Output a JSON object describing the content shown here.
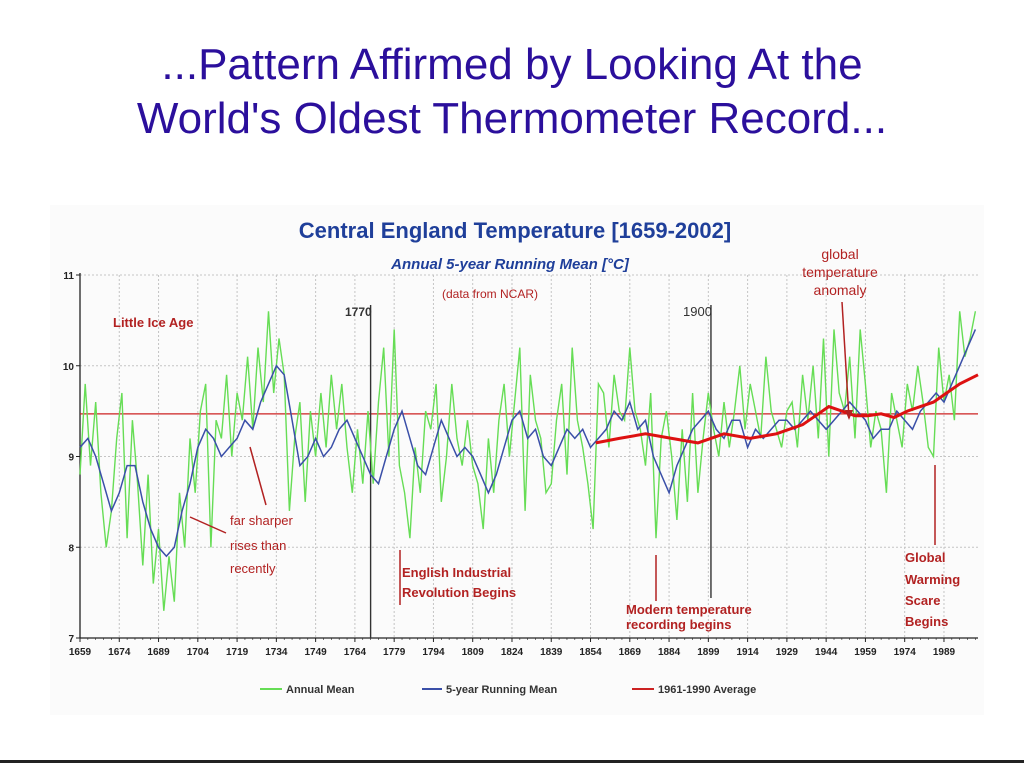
{
  "slide": {
    "title_line1": "...Pattern Affirmed by Looking At the",
    "title_line2": "World's Oldest Thermometer Record..."
  },
  "chart_data": {
    "type": "line",
    "title": "Central England Temperature [1659-2002]",
    "subtitle": "Annual 5-year Running Mean [°C]",
    "source_note": "(data from NCAR)",
    "xlim": [
      1659,
      2002
    ],
    "ylim": [
      7,
      11
    ],
    "grid": true,
    "legend_position": "bottom",
    "y_ticks": [
      "7",
      "8",
      "9",
      "10",
      "11"
    ],
    "x_tick_labels": [
      "1659",
      "1674",
      "1689",
      "1704",
      "1719",
      "1734",
      "1749",
      "1764",
      "1779",
      "1794",
      "1809",
      "1824",
      "1839",
      "1854",
      "1869",
      "1884",
      "1899",
      "1914",
      "1929",
      "1944",
      "1959",
      "1974",
      "1989"
    ],
    "colors": {
      "annual": "#66dd55",
      "running_mean": "#3a4fa8",
      "average": "#cc2222",
      "annotation": "#b22222",
      "marker_line": "#333333"
    },
    "average_1961_1990": 9.47,
    "series": [
      {
        "name": "Annual Mean",
        "x": [
          1659,
          1661,
          1663,
          1665,
          1667,
          1669,
          1671,
          1673,
          1675,
          1677,
          1679,
          1681,
          1683,
          1685,
          1687,
          1689,
          1691,
          1693,
          1695,
          1697,
          1699,
          1701,
          1703,
          1705,
          1707,
          1709,
          1711,
          1713,
          1715,
          1717,
          1719,
          1721,
          1723,
          1725,
          1727,
          1729,
          1731,
          1733,
          1735,
          1737,
          1739,
          1741,
          1743,
          1745,
          1747,
          1749,
          1751,
          1753,
          1755,
          1757,
          1759,
          1761,
          1763,
          1765,
          1767,
          1769,
          1771,
          1773,
          1775,
          1777,
          1779,
          1781,
          1783,
          1785,
          1787,
          1789,
          1791,
          1793,
          1795,
          1797,
          1799,
          1801,
          1803,
          1805,
          1807,
          1809,
          1811,
          1813,
          1815,
          1817,
          1819,
          1821,
          1823,
          1825,
          1827,
          1829,
          1831,
          1833,
          1835,
          1837,
          1839,
          1841,
          1843,
          1845,
          1847,
          1849,
          1851,
          1853,
          1855,
          1857,
          1859,
          1861,
          1863,
          1865,
          1867,
          1869,
          1871,
          1873,
          1875,
          1877,
          1879,
          1881,
          1883,
          1885,
          1887,
          1889,
          1891,
          1893,
          1895,
          1897,
          1899,
          1901,
          1903,
          1905,
          1907,
          1909,
          1911,
          1913,
          1915,
          1917,
          1919,
          1921,
          1923,
          1925,
          1927,
          1929,
          1931,
          1933,
          1935,
          1937,
          1939,
          1941,
          1943,
          1945,
          1947,
          1949,
          1951,
          1953,
          1955,
          1957,
          1959,
          1961,
          1963,
          1965,
          1967,
          1969,
          1971,
          1973,
          1975,
          1977,
          1979,
          1981,
          1983,
          1985,
          1987,
          1989,
          1991,
          1993,
          1995,
          1997,
          1999,
          2001
        ],
        "values": [
          8.8,
          9.8,
          8.9,
          9.6,
          8.6,
          8.0,
          8.4,
          9.2,
          9.7,
          8.1,
          9.4,
          8.7,
          7.8,
          8.8,
          7.6,
          8.2,
          7.3,
          7.9,
          7.4,
          8.6,
          8.0,
          9.2,
          8.6,
          9.5,
          9.8,
          8.0,
          9.4,
          9.2,
          9.9,
          9.0,
          9.7,
          9.4,
          10.1,
          9.3,
          10.2,
          9.6,
          10.6,
          9.7,
          10.3,
          9.9,
          8.4,
          9.2,
          9.6,
          8.5,
          9.5,
          9.0,
          9.7,
          9.1,
          9.9,
          9.3,
          9.8,
          9.1,
          8.6,
          9.3,
          8.7,
          9.5,
          8.7,
          9.6,
          10.2,
          9.0,
          10.4,
          8.9,
          8.6,
          8.1,
          9.1,
          8.6,
          9.5,
          9.3,
          9.8,
          8.5,
          9.0,
          9.8,
          9.2,
          8.9,
          9.4,
          8.9,
          8.7,
          8.2,
          9.2,
          8.6,
          9.4,
          9.8,
          9.0,
          9.6,
          10.2,
          8.4,
          9.9,
          9.4,
          9.2,
          8.6,
          8.7,
          9.4,
          9.8,
          8.8,
          10.2,
          9.4,
          9.1,
          8.7,
          8.2,
          9.8,
          9.7,
          9.1,
          9.9,
          9.5,
          9.4,
          10.2,
          9.5,
          9.3,
          8.9,
          9.7,
          8.1,
          9.2,
          9.5,
          9.0,
          8.3,
          9.3,
          8.5,
          9.7,
          8.6,
          9.2,
          9.7,
          9.3,
          9.0,
          9.6,
          9.1,
          9.5,
          10.0,
          9.3,
          9.8,
          9.5,
          9.2,
          10.1,
          9.5,
          9.3,
          9.1,
          9.5,
          9.6,
          9.1,
          9.9,
          9.4,
          10.0,
          9.2,
          10.3,
          9.0,
          10.4,
          9.7,
          9.5,
          10.1,
          9.2,
          10.4,
          9.8,
          9.1,
          9.5,
          9.3,
          8.6,
          9.7,
          9.4,
          9.1,
          9.8,
          9.5,
          10.0,
          9.6,
          9.1,
          9.0,
          10.2,
          9.6,
          9.9,
          9.4,
          10.6,
          10.1,
          10.3,
          10.6
        ]
      },
      {
        "name": "5-year Running Mean",
        "x": [
          1659,
          1662,
          1665,
          1668,
          1671,
          1674,
          1677,
          1680,
          1683,
          1686,
          1689,
          1692,
          1695,
          1698,
          1701,
          1704,
          1707,
          1710,
          1713,
          1716,
          1719,
          1722,
          1725,
          1728,
          1731,
          1734,
          1737,
          1740,
          1743,
          1746,
          1749,
          1752,
          1755,
          1758,
          1761,
          1764,
          1767,
          1770,
          1773,
          1776,
          1779,
          1782,
          1785,
          1788,
          1791,
          1794,
          1797,
          1800,
          1803,
          1806,
          1809,
          1812,
          1815,
          1818,
          1821,
          1824,
          1827,
          1830,
          1833,
          1836,
          1839,
          1842,
          1845,
          1848,
          1851,
          1854,
          1857,
          1860,
          1863,
          1866,
          1869,
          1872,
          1875,
          1878,
          1881,
          1884,
          1887,
          1890,
          1893,
          1896,
          1899,
          1902,
          1905,
          1908,
          1911,
          1914,
          1917,
          1920,
          1923,
          1926,
          1929,
          1932,
          1935,
          1938,
          1941,
          1944,
          1947,
          1950,
          1953,
          1956,
          1959,
          1962,
          1965,
          1968,
          1971,
          1974,
          1977,
          1980,
          1983,
          1986,
          1989,
          1992,
          1995,
          1998,
          2001
        ],
        "values": [
          9.1,
          9.2,
          9.0,
          8.7,
          8.4,
          8.6,
          8.9,
          8.9,
          8.5,
          8.2,
          8.0,
          7.9,
          8.0,
          8.4,
          8.7,
          9.1,
          9.3,
          9.2,
          9.0,
          9.1,
          9.2,
          9.4,
          9.3,
          9.6,
          9.8,
          10.0,
          9.9,
          9.4,
          8.9,
          9.0,
          9.2,
          9.0,
          9.1,
          9.3,
          9.4,
          9.2,
          9.0,
          8.8,
          8.7,
          9.0,
          9.3,
          9.5,
          9.2,
          8.9,
          8.8,
          9.1,
          9.4,
          9.2,
          9.0,
          9.1,
          9.0,
          8.8,
          8.6,
          8.8,
          9.1,
          9.4,
          9.5,
          9.2,
          9.3,
          9.0,
          8.9,
          9.1,
          9.3,
          9.2,
          9.3,
          9.1,
          9.2,
          9.3,
          9.5,
          9.4,
          9.6,
          9.3,
          9.4,
          9.0,
          8.8,
          8.6,
          8.9,
          9.1,
          9.3,
          9.4,
          9.5,
          9.3,
          9.2,
          9.4,
          9.4,
          9.1,
          9.3,
          9.2,
          9.3,
          9.4,
          9.4,
          9.3,
          9.4,
          9.5,
          9.4,
          9.3,
          9.4,
          9.5,
          9.6,
          9.5,
          9.4,
          9.2,
          9.3,
          9.3,
          9.5,
          9.4,
          9.3,
          9.5,
          9.6,
          9.7,
          9.6,
          9.8,
          10.0,
          10.2,
          10.4
        ]
      },
      {
        "name": "global temperature anomaly",
        "x": [
          1856,
          1865,
          1875,
          1885,
          1895,
          1905,
          1915,
          1925,
          1935,
          1940,
          1945,
          1950,
          1955,
          1960,
          1965,
          1970,
          1975,
          1980,
          1985,
          1990,
          1995,
          2002
        ],
        "values": [
          9.15,
          9.2,
          9.25,
          9.2,
          9.15,
          9.25,
          9.2,
          9.25,
          9.35,
          9.45,
          9.55,
          9.5,
          9.45,
          9.45,
          9.47,
          9.43,
          9.5,
          9.55,
          9.6,
          9.7,
          9.8,
          9.9
        ]
      }
    ],
    "legend": [
      {
        "key": "annual",
        "label": "Annual Mean"
      },
      {
        "key": "running",
        "label": "5-year Running Mean"
      },
      {
        "key": "average",
        "label": "1961-1990 Average"
      }
    ],
    "annotations": {
      "little_ice_age": "Little Ice Age",
      "year_1770": "1770",
      "year_1900": "1900",
      "global_anomaly_l1": "global",
      "global_anomaly_l2": "temperature",
      "global_anomaly_l3": "anomaly",
      "sharper_l1": "far sharper",
      "sharper_l2": "rises than",
      "sharper_l3": "recently",
      "industrial_l1": "English Industrial",
      "industrial_l2": "Revolution Begins",
      "modern_l1": "Modern temperature",
      "modern_l2": "recording begins",
      "scare_l1": "Global",
      "scare_l2": "Warming",
      "scare_l3": "Scare",
      "scare_l4": "Begins"
    }
  }
}
